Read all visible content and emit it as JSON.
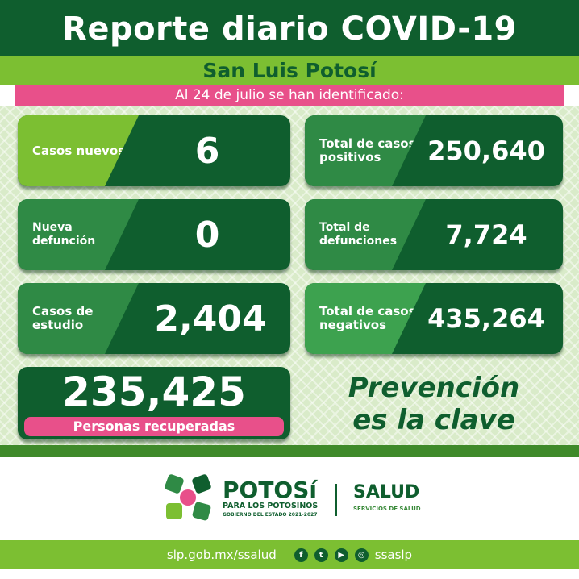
{
  "title": "Reporte diario COVID-19",
  "region": "San Luis Potosí",
  "date_line": "Al 24 de  julio se han identificado:",
  "cards": [
    {
      "label": "Casos nuevos",
      "value": "6"
    },
    {
      "label": "Nueva defunción",
      "value": "0"
    },
    {
      "label": "Casos de estudio",
      "value": "2,404"
    },
    {
      "label": "Total de casos positivos",
      "value": "250,640"
    },
    {
      "label": "Total de defunciones",
      "value": "7,724"
    },
    {
      "label": "Total de casos negativos",
      "value": "435,264"
    }
  ],
  "recovered": {
    "value": "235,425",
    "label": "Personas recuperadas"
  },
  "slogan": {
    "line1": "Prevención",
    "line2": "es la clave"
  },
  "logos": {
    "potosi": "POTOSí",
    "potosi_sub": "PARA LOS POTOSINOS",
    "potosi_gov": "GOBIERNO DEL ESTADO 2021-2027",
    "salud": "SALUD",
    "salud_sub": "SERVICIOS DE SALUD"
  },
  "footer": {
    "url": "slp.gob.mx/ssalud",
    "handle": "ssaslp",
    "icons": [
      "facebook-icon",
      "twitter-icon",
      "youtube-icon",
      "instagram-icon"
    ]
  },
  "colors": {
    "dark_green": "#0f5e2e",
    "light_green": "#7cbf32",
    "mid_green": "#2f8a45",
    "pink": "#e8508a"
  }
}
